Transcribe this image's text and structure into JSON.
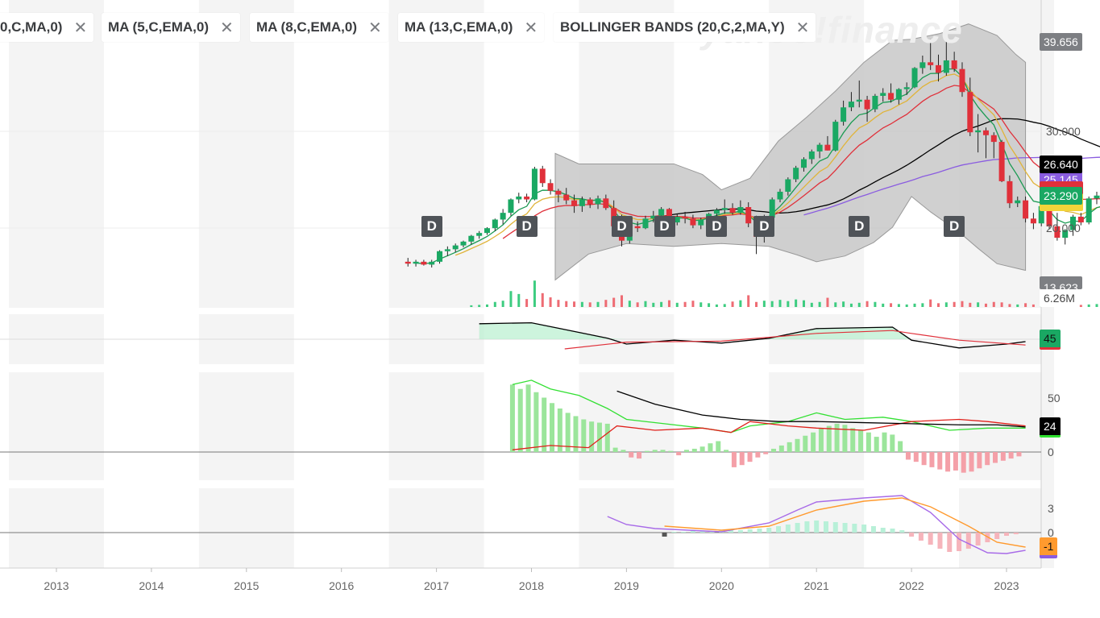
{
  "indicator_chips": [
    {
      "label": "0,C,MA,0)"
    },
    {
      "label": "MA (5,C,EMA,0)"
    },
    {
      "label": "MA (8,C,EMA,0)"
    },
    {
      "label": "MA (13,C,EMA,0)"
    },
    {
      "label": "BOLLINGER BANDS (20,C,2,MA,Y)"
    }
  ],
  "close_glyph": "✕",
  "watermark": "yahoo!finance",
  "price_tags": {
    "top": "39.656",
    "last": "26.640",
    "ma_partial": "25.145",
    "ema": "23.290",
    "bottom_partial": "13.623",
    "volume": "6.26M"
  },
  "osc1_tag": "45",
  "osc2_tag": "24",
  "osc3_tag": "-1",
  "dividend_label": "D",
  "colors": {
    "up": "#1aa863",
    "down": "#e0303a",
    "ema5": "#1a9a52",
    "ema8": "#e0b43a",
    "ema13": "#e0303a",
    "ma_long": "#000000",
    "ma_purple": "#8a5ce0",
    "band_fill": "#c8c8c8",
    "macd_line": "#ff9a2e"
  },
  "chart_data": [
    {
      "type": "candlestick",
      "title": "",
      "x_tick_labels": [
        "2013",
        "2014",
        "2015",
        "2016",
        "2017",
        "2018",
        "2019",
        "2020",
        "2021",
        "2022",
        "2023"
      ],
      "y_tick_labels": [
        "30.000",
        "20.000"
      ],
      "ylim": [
        13.623,
        39.656
      ],
      "x_start": 2016.7,
      "x_step_years": 0.0833333,
      "candles": [
        [
          16.4,
          16.8,
          15.9,
          16.2
        ],
        [
          16.2,
          16.6,
          15.9,
          16.4
        ],
        [
          16.4,
          16.6,
          16.0,
          16.1
        ],
        [
          16.1,
          16.6,
          15.8,
          16.4
        ],
        [
          16.4,
          17.6,
          16.2,
          17.5
        ],
        [
          17.5,
          18.0,
          17.0,
          17.7
        ],
        [
          17.7,
          18.3,
          17.4,
          18.1
        ],
        [
          18.1,
          18.6,
          17.9,
          18.5
        ],
        [
          18.5,
          19.2,
          18.2,
          19.1
        ],
        [
          19.1,
          19.6,
          18.8,
          19.4
        ],
        [
          19.4,
          20.0,
          19.2,
          19.9
        ],
        [
          19.9,
          20.9,
          19.6,
          20.8
        ],
        [
          20.8,
          21.9,
          20.3,
          21.5
        ],
        [
          21.5,
          23.0,
          21.2,
          22.9
        ],
        [
          22.9,
          23.6,
          22.5,
          23.2
        ],
        [
          23.2,
          23.5,
          22.6,
          22.9
        ],
        [
          22.9,
          26.3,
          22.8,
          26.1
        ],
        [
          26.1,
          26.4,
          24.2,
          24.6
        ],
        [
          24.6,
          25.0,
          23.4,
          23.8
        ],
        [
          23.8,
          24.0,
          22.6,
          23.4
        ],
        [
          23.4,
          24.1,
          22.4,
          22.8
        ],
        [
          22.8,
          23.4,
          21.5,
          22.2
        ],
        [
          22.2,
          23.2,
          21.6,
          22.9
        ],
        [
          22.9,
          23.1,
          22.0,
          22.4
        ],
        [
          22.4,
          23.3,
          21.9,
          23.0
        ],
        [
          23.0,
          23.4,
          21.8,
          22.0
        ],
        [
          22.0,
          22.8,
          19.6,
          20.1
        ],
        [
          20.1,
          21.3,
          18.0,
          18.6
        ],
        [
          18.6,
          20.2,
          18.3,
          20.1
        ],
        [
          20.1,
          20.6,
          19.5,
          19.9
        ],
        [
          19.9,
          21.2,
          19.8,
          20.9
        ],
        [
          20.9,
          21.7,
          20.5,
          21.2
        ],
        [
          21.2,
          22.1,
          21.0,
          21.9
        ],
        [
          21.9,
          22.0,
          20.2,
          20.5
        ],
        [
          20.5,
          21.4,
          20.2,
          21.1
        ],
        [
          21.1,
          21.6,
          20.4,
          20.9
        ],
        [
          20.9,
          21.3,
          19.9,
          20.2
        ],
        [
          20.2,
          21.0,
          19.8,
          20.8
        ],
        [
          20.8,
          21.5,
          20.5,
          21.4
        ],
        [
          21.4,
          22.0,
          21.1,
          21.8
        ],
        [
          21.8,
          22.9,
          21.4,
          22.0
        ],
        [
          22.0,
          22.5,
          21.3,
          21.5
        ],
        [
          21.5,
          22.8,
          21.3,
          22.1
        ],
        [
          22.1,
          22.6,
          20.0,
          20.4
        ],
        [
          20.4,
          21.2,
          17.2,
          19.0
        ],
        [
          19.0,
          21.3,
          18.4,
          21.0
        ],
        [
          21.0,
          23.1,
          20.8,
          22.9
        ],
        [
          22.9,
          24.0,
          22.6,
          23.7
        ],
        [
          23.7,
          25.2,
          23.3,
          25.0
        ],
        [
          25.0,
          26.4,
          24.7,
          26.2
        ],
        [
          26.2,
          27.3,
          25.8,
          27.1
        ],
        [
          27.1,
          28.1,
          26.6,
          27.9
        ],
        [
          27.9,
          28.8,
          27.2,
          28.6
        ],
        [
          28.6,
          29.5,
          28.0,
          28.0
        ],
        [
          28.0,
          31.2,
          27.9,
          31.0
        ],
        [
          31.0,
          33.2,
          30.6,
          32.5
        ],
        [
          32.5,
          34.1,
          32.1,
          33.1
        ],
        [
          33.1,
          35.3,
          32.5,
          33.3
        ],
        [
          33.3,
          33.7,
          31.0,
          32.3
        ],
        [
          32.3,
          33.9,
          32.0,
          33.7
        ],
        [
          33.7,
          34.5,
          33.1,
          34.0
        ],
        [
          34.0,
          35.0,
          33.0,
          33.3
        ],
        [
          33.3,
          34.5,
          32.8,
          34.4
        ],
        [
          34.4,
          35.1,
          33.8,
          34.6
        ],
        [
          34.6,
          36.7,
          34.5,
          36.6
        ],
        [
          36.6,
          37.9,
          36.0,
          37.2
        ],
        [
          37.2,
          39.6,
          36.4,
          36.9
        ],
        [
          36.9,
          38.0,
          35.2,
          36.1
        ],
        [
          36.1,
          39.7,
          35.8,
          37.4
        ],
        [
          37.4,
          38.3,
          36.2,
          36.5
        ],
        [
          36.5,
          37.2,
          33.6,
          34.1
        ],
        [
          34.1,
          35.6,
          29.5,
          29.9
        ],
        [
          29.9,
          31.8,
          27.8,
          30.1
        ],
        [
          30.1,
          30.4,
          27.2,
          29.6
        ],
        [
          29.6,
          29.9,
          27.2,
          28.9
        ],
        [
          28.9,
          29.1,
          24.7,
          24.8
        ],
        [
          24.8,
          25.4,
          22.0,
          22.5
        ],
        [
          22.5,
          23.2,
          22.1,
          22.8
        ],
        [
          22.8,
          23.2,
          20.5,
          20.9
        ],
        [
          20.9,
          21.5,
          19.8,
          20.4
        ],
        [
          20.4,
          22.4,
          20.1,
          22.2
        ],
        [
          22.2,
          22.4,
          19.8,
          20.1
        ],
        [
          20.1,
          21.5,
          18.6,
          18.9
        ],
        [
          18.9,
          19.8,
          18.2,
          19.7
        ],
        [
          19.7,
          21.3,
          19.1,
          21.1
        ],
        [
          21.1,
          21.5,
          20.2,
          20.5
        ],
        [
          20.5,
          23.2,
          20.3,
          23.0
        ],
        [
          23.0,
          23.7,
          22.4,
          23.3
        ],
        [
          23.3,
          23.8,
          22.3,
          22.7
        ]
      ],
      "volume_values": [
        0,
        0,
        0,
        0,
        0,
        0,
        0,
        0,
        0.4,
        0.5,
        0.6,
        1.2,
        1.5,
        3.8,
        3.1,
        1.9,
        6.3,
        3.3,
        2.3,
        1.7,
        1.4,
        1.3,
        1.2,
        1.1,
        1.2,
        1.7,
        2.2,
        2.8,
        1.5,
        1.1,
        1.4,
        1.0,
        1.2,
        1.6,
        1.0,
        1.2,
        1.5,
        1.1,
        0.9,
        0.6,
        0.7,
        1.3,
        1.6,
        2.8,
        1.2,
        1.5,
        1.4,
        1.7,
        1.4,
        1.8,
        1.6,
        1.0,
        1.2,
        2.2,
        1.1,
        1.3,
        0.8,
        1.0,
        1.4,
        1.2,
        0.8,
        0.9,
        0.7,
        0.6,
        0.8,
        0.9,
        1.8,
        0.9,
        1.1,
        1.2,
        1.4,
        1.0,
        1.1,
        0.8,
        1.2,
        1.1,
        0.7,
        0.6,
        0.9,
        0.6,
        0.7,
        0.8,
        0.5,
        0.6,
        0.7,
        0.5,
        0.6,
        0.7,
        0.3
      ],
      "bollinger_upper": [
        [
          2018.25,
          27.7
        ],
        [
          2018.5,
          26.6
        ],
        [
          2019.0,
          26.6
        ],
        [
          2019.5,
          26.6
        ],
        [
          2019.8,
          25.5
        ],
        [
          2020.0,
          23.9
        ],
        [
          2020.3,
          25.1
        ],
        [
          2020.6,
          29.0
        ],
        [
          2020.9,
          31.5
        ],
        [
          2021.2,
          34.2
        ],
        [
          2021.5,
          37.2
        ],
        [
          2021.8,
          39.5
        ],
        [
          2022.0,
          39.6
        ],
        [
          2022.3,
          40.2
        ],
        [
          2022.6,
          41.2
        ],
        [
          2022.9,
          40.0
        ],
        [
          2023.1,
          38.0
        ],
        [
          2023.2,
          37.2
        ]
      ],
      "bollinger_lower": [
        [
          2018.25,
          14.5
        ],
        [
          2018.6,
          17.2
        ],
        [
          2019.0,
          18.3
        ],
        [
          2019.5,
          18.0
        ],
        [
          2020.0,
          18.3
        ],
        [
          2020.5,
          18.0
        ],
        [
          2020.8,
          17.1
        ],
        [
          2021.0,
          16.4
        ],
        [
          2021.3,
          17.0
        ],
        [
          2021.6,
          18.4
        ],
        [
          2021.8,
          20.0
        ],
        [
          2022.0,
          23.2
        ],
        [
          2022.2,
          21.6
        ],
        [
          2022.5,
          19.5
        ],
        [
          2022.7,
          17.8
        ],
        [
          2022.9,
          16.2
        ],
        [
          2023.2,
          15.5
        ]
      ],
      "bands_start": 2018.25
    },
    {
      "type": "line",
      "title": "",
      "y_tick_labels": [],
      "series": [
        {
          "values": [
            [
              2017.45,
              82
            ],
            [
              2018.0,
              84
            ],
            [
              2018.3,
              72
            ],
            [
              2018.8,
              52
            ],
            [
              2019.0,
              40
            ],
            [
              2019.5,
              48
            ],
            [
              2020.0,
              42
            ],
            [
              2020.5,
              52
            ],
            [
              2021.0,
              72
            ],
            [
              2021.8,
              75
            ],
            [
              2022.0,
              48
            ],
            [
              2022.5,
              32
            ],
            [
              2023.0,
              40
            ],
            [
              2023.2,
              45
            ]
          ]
        },
        {
          "values": [
            [
              2018.35,
              30
            ],
            [
              2019.0,
              44
            ],
            [
              2020.0,
              46
            ],
            [
              2021.0,
              62
            ],
            [
              2021.8,
              68
            ],
            [
              2022.0,
              62
            ],
            [
              2022.5,
              48
            ],
            [
              2023.2,
              38
            ]
          ]
        }
      ],
      "fill_above": 50
    },
    {
      "type": "bar",
      "title": "",
      "y_tick_labels": [
        "50",
        "0"
      ],
      "series": [],
      "values": "histogram"
    },
    {
      "type": "line",
      "title": "",
      "y_tick_labels": [
        "3",
        "0"
      ],
      "series": []
    }
  ]
}
